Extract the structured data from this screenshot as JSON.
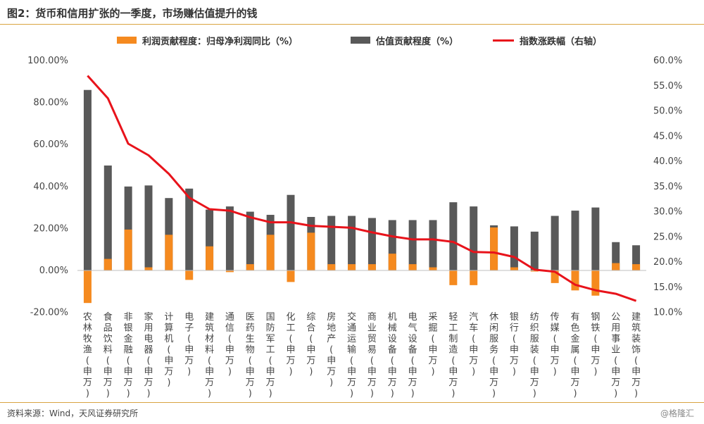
{
  "header": {
    "title": "图2：货币和信用扩张的一季度，市场赚估值提升的钱"
  },
  "footer": {
    "source": "资料来源：Wind，天风证券研究所",
    "watermark": "@格隆汇"
  },
  "colors": {
    "profit": "#f58a1f",
    "valuation": "#595959",
    "index": "#e8131b",
    "rule": "#d9a441"
  },
  "chart_data": {
    "type": "bar",
    "title": "图2：货币和信用扩张的一季度，市场赚估值提升的钱",
    "legend_position": "top",
    "grid": false,
    "categories": [
      "农林牧渔(申万)",
      "食品饮料(申万)",
      "非银金融(申万)",
      "家用电器(申万)",
      "计算机(申万)",
      "电子(申万)",
      "建筑材料(申万)",
      "通信(申万)",
      "医药生物(申万)",
      "国防军工(申万)",
      "化工(申万)",
      "综合(申万)",
      "房地产(申万)",
      "交通运输(申万)",
      "商业贸易(申万)",
      "机械设备(申万)",
      "电气设备(申万)",
      "采掘(申万)",
      "轻工制造(申万)",
      "汽车(申万)",
      "休闲服务(申万)",
      "银行(申万)",
      "纺织服装(申万)",
      "传媒(申万)",
      "有色金属(申万)",
      "钢铁(申万)",
      "公用事业(申万)",
      "建筑装饰(申万)"
    ],
    "series": [
      {
        "name": "利润贡献程度：归母净利润同比（%）",
        "kind": "bar",
        "axis": "left",
        "values": [
          -15.5,
          5.5,
          19.5,
          1.5,
          17,
          -4.5,
          11.5,
          -0.8,
          3,
          17,
          -5.5,
          18,
          3,
          3,
          3,
          8,
          3,
          1.5,
          -7,
          -7,
          20.5,
          1.5,
          -0.5,
          -6,
          -9.5,
          -12,
          3.5,
          3
        ]
      },
      {
        "name": "估值贡献程度（%）",
        "kind": "bar",
        "axis": "left",
        "values": [
          86,
          50,
          40,
          40.5,
          34.5,
          39,
          29,
          30.5,
          28,
          26.5,
          36,
          25.5,
          26,
          26,
          25,
          24,
          24,
          24,
          32.5,
          30.5,
          21.5,
          21,
          18.5,
          26,
          28.5,
          30,
          13.5,
          12
        ]
      },
      {
        "name": "指数涨跌幅（右轴）",
        "kind": "line",
        "axis": "right",
        "values": [
          57,
          52.5,
          43.5,
          41.2,
          37.5,
          32.8,
          30.5,
          30.2,
          28.9,
          27.9,
          27.9,
          27.2,
          27,
          26.8,
          25.9,
          25.1,
          24.5,
          24.5,
          24,
          22,
          21.9,
          21,
          18.5,
          18.1,
          15.5,
          14.4,
          13.7,
          12.3
        ]
      }
    ],
    "y_left": {
      "min": -20,
      "max": 100,
      "ticks": [
        "-20.00%",
        "0.00%",
        "20.00%",
        "40.00%",
        "60.00%",
        "80.00%",
        "100.00%"
      ]
    },
    "y_right": {
      "min": 10,
      "max": 60,
      "ticks": [
        "10.0%",
        "15.0%",
        "20.0%",
        "25.0%",
        "30.0%",
        "35.0%",
        "40.0%",
        "45.0%",
        "50.0%",
        "55.0%",
        "60.0%"
      ]
    }
  }
}
